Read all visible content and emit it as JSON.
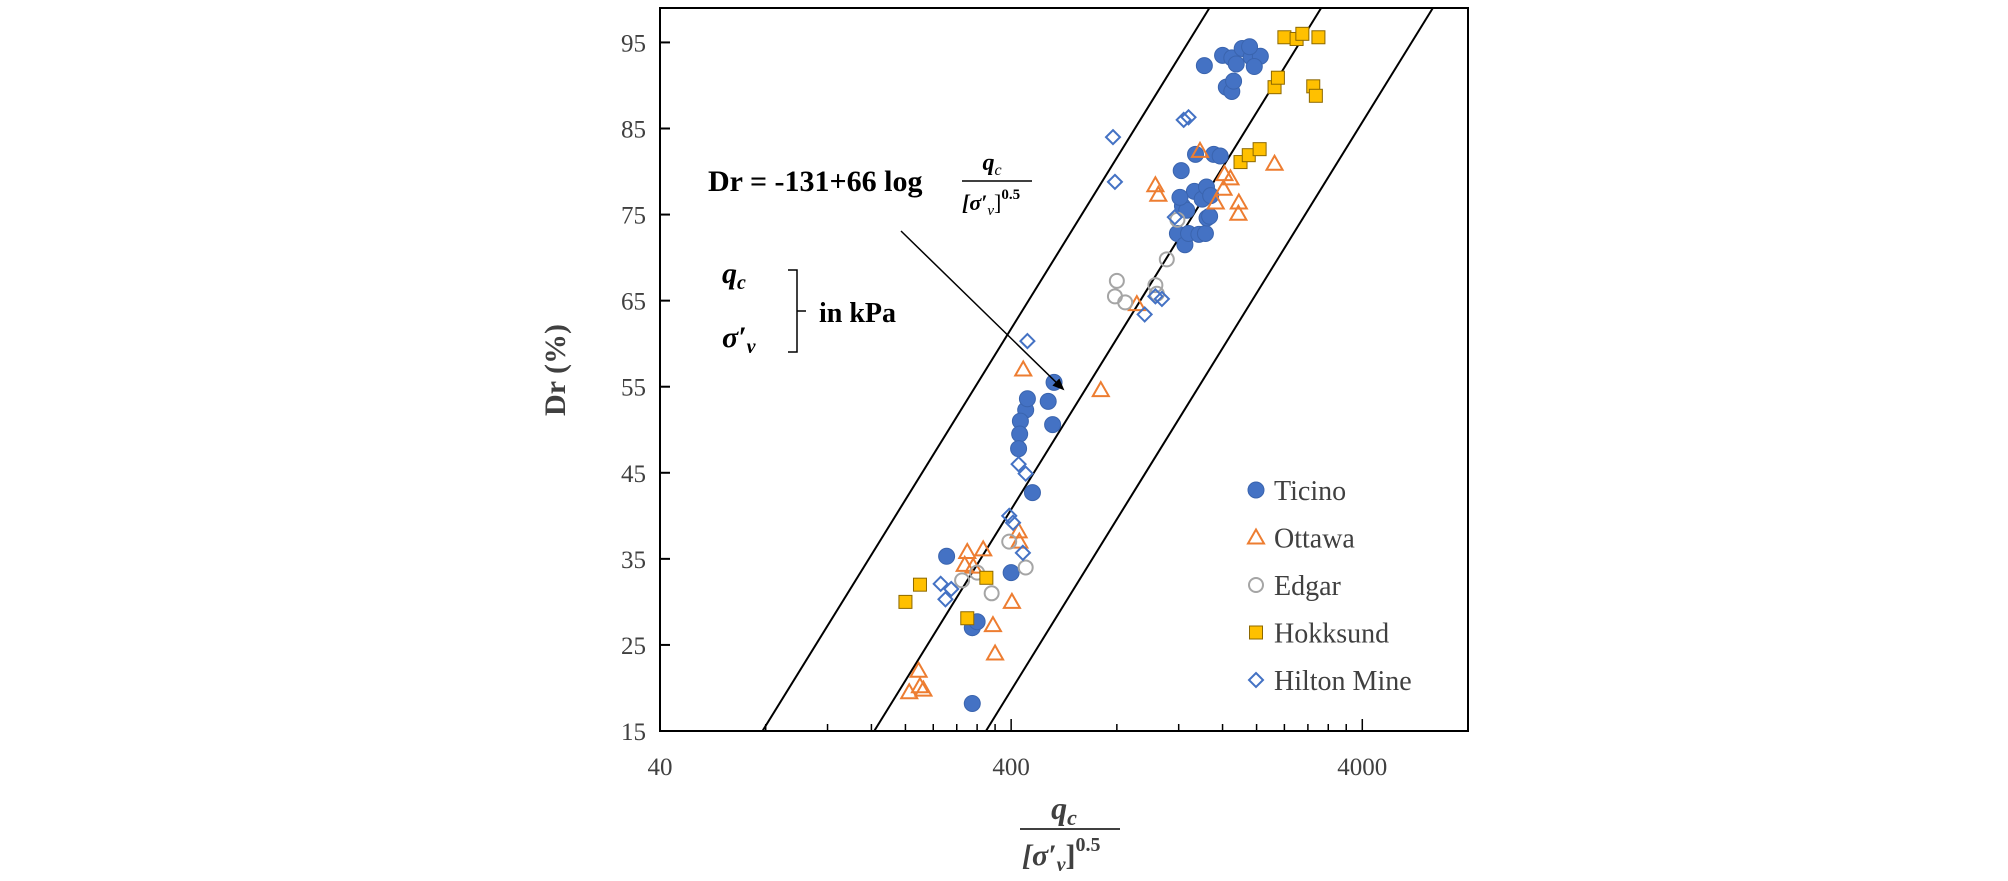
{
  "chart_data": {
    "type": "scatter",
    "ylabel": "Dr (%)",
    "xlabel_numerator": "q",
    "xlabel_numerator_sub": "c",
    "xlabel_denominator": "[σ′",
    "xlabel_denominator_sub": "v",
    "xlabel_denominator_end": "]",
    "xlabel_denominator_exp": "0.5",
    "x_scale": "log",
    "xlim": [
      40,
      8000
    ],
    "ylim": [
      15,
      99
    ],
    "x_ticks": [
      40,
      400,
      4000
    ],
    "x_tick_labels": [
      "40",
      "400",
      "4000"
    ],
    "y_ticks": [
      15,
      25,
      35,
      45,
      55,
      65,
      75,
      85,
      95
    ],
    "y_tick_labels": [
      "15",
      "25",
      "35",
      "45",
      "55",
      "65",
      "75",
      "85",
      "95"
    ],
    "grid": false,
    "legend_position": "bottom-right",
    "equation": {
      "lhs": "Dr = -131+66 log",
      "frac_num": "q",
      "frac_num_sub": "c",
      "frac_den": "[σ′",
      "frac_den_sub": "v",
      "frac_den_end": "]",
      "frac_den_exp": "0.5"
    },
    "units_note": {
      "var1": "q",
      "var1_sub": "c",
      "var2": "σ′",
      "var2_sub": "v",
      "text": "in kPa"
    },
    "lines": [
      {
        "intercept": -110,
        "slope": 66
      },
      {
        "intercept": -131,
        "slope": 66
      },
      {
        "intercept": -152,
        "slope": 66
      }
    ],
    "series": [
      {
        "name": "Ticino",
        "color": "#4472C4",
        "marker": "filled-circle",
        "points": [
          [
            262,
            35.3
          ],
          [
            310,
            27
          ],
          [
            320,
            27.7
          ],
          [
            310,
            18.2
          ],
          [
            400,
            33.4
          ],
          [
            460,
            42.7
          ],
          [
            440,
            52.3
          ],
          [
            445,
            53.6
          ],
          [
            425,
            51
          ],
          [
            423,
            49.5
          ],
          [
            420,
            47.8
          ],
          [
            530,
            55.5
          ],
          [
            510,
            53.3
          ],
          [
            525,
            50.6
          ],
          [
            1190,
            72.8
          ],
          [
            1250,
            71.5
          ],
          [
            1280,
            72.8
          ],
          [
            1230,
            76
          ],
          [
            1265,
            75.5
          ],
          [
            1370,
            72.7
          ],
          [
            1430,
            72.8
          ],
          [
            1445,
            74.6
          ],
          [
            1470,
            74.8
          ],
          [
            1330,
            77.7
          ],
          [
            1400,
            76.8
          ],
          [
            1210,
            77
          ],
          [
            1220,
            80.1
          ],
          [
            1340,
            82
          ],
          [
            1510,
            82
          ],
          [
            1575,
            81.8
          ],
          [
            1420,
            92.3
          ],
          [
            1600,
            93.5
          ],
          [
            1700,
            93.2
          ],
          [
            1820,
            94.3
          ],
          [
            1930,
            93.3
          ],
          [
            2050,
            93.4
          ],
          [
            1750,
            92.5
          ],
          [
            1970,
            92.2
          ],
          [
            1640,
            89.8
          ],
          [
            1700,
            89.3
          ],
          [
            1720,
            90.5
          ],
          [
            1440,
            78.2
          ],
          [
            1480,
            77.2
          ],
          [
            1910,
            94.5
          ]
        ]
      },
      {
        "name": "Ottawa",
        "color": "#ED7D31",
        "marker": "open-triangle",
        "points": [
          [
            205,
            19.5
          ],
          [
            220,
            20.2
          ],
          [
            225,
            19.8
          ],
          [
            218,
            22
          ],
          [
            295,
            34.3
          ],
          [
            300,
            35.8
          ],
          [
            312,
            34.1
          ],
          [
            333,
            36.1
          ],
          [
            355,
            27.3
          ],
          [
            360,
            24
          ],
          [
            402,
            30
          ],
          [
            420,
            38.2
          ],
          [
            422,
            37
          ],
          [
            433,
            57
          ],
          [
            720,
            54.6
          ],
          [
            912,
            64.6
          ],
          [
            1030,
            78.4
          ],
          [
            1050,
            77.3
          ],
          [
            1380,
            82.4
          ],
          [
            1530,
            76.4
          ],
          [
            1610,
            78
          ],
          [
            1620,
            79.7
          ],
          [
            1685,
            79.2
          ],
          [
            1775,
            75.1
          ],
          [
            1780,
            76.4
          ],
          [
            2250,
            80.9
          ]
        ]
      },
      {
        "name": "Edgar",
        "color": "#A5A5A5",
        "marker": "open-circle",
        "points": [
          [
            290,
            32.5
          ],
          [
            320,
            33.4
          ],
          [
            352,
            31
          ],
          [
            395,
            37
          ],
          [
            440,
            34
          ],
          [
            800,
            67.3
          ],
          [
            790,
            65.5
          ],
          [
            845,
            64.8
          ],
          [
            1030,
            66.8
          ],
          [
            1040,
            65.8
          ],
          [
            1110,
            69.8
          ],
          [
            1190,
            74.4
          ]
        ]
      },
      {
        "name": "Hokksund",
        "color": "#FFC000",
        "marker": "filled-square",
        "points": [
          [
            200,
            30
          ],
          [
            220,
            32
          ],
          [
            300,
            28.1
          ],
          [
            340,
            32.8
          ],
          [
            1800,
            81.1
          ],
          [
            1900,
            81.9
          ],
          [
            2040,
            82.6
          ],
          [
            2250,
            89.8
          ],
          [
            2300,
            90.9
          ],
          [
            2400,
            95.6
          ],
          [
            2600,
            95.4
          ],
          [
            2700,
            96
          ],
          [
            2900,
            89.9
          ],
          [
            2950,
            88.8
          ],
          [
            3000,
            95.6
          ]
        ]
      },
      {
        "name": "Hilton Mine",
        "color": "#4472C4",
        "marker": "open-diamond",
        "points": [
          [
            252,
            32.1
          ],
          [
            260,
            30.3
          ],
          [
            270,
            31.5
          ],
          [
            395,
            40
          ],
          [
            405,
            39.2
          ],
          [
            432,
            35.7
          ],
          [
            420,
            46
          ],
          [
            440,
            44.9
          ],
          [
            445,
            60.3
          ],
          [
            780,
            84
          ],
          [
            790,
            78.8
          ],
          [
            960,
            63.4
          ],
          [
            1030,
            65.5
          ],
          [
            1075,
            65.2
          ],
          [
            1170,
            74.7
          ],
          [
            1240,
            86
          ],
          [
            1280,
            86.3
          ]
        ]
      }
    ]
  }
}
